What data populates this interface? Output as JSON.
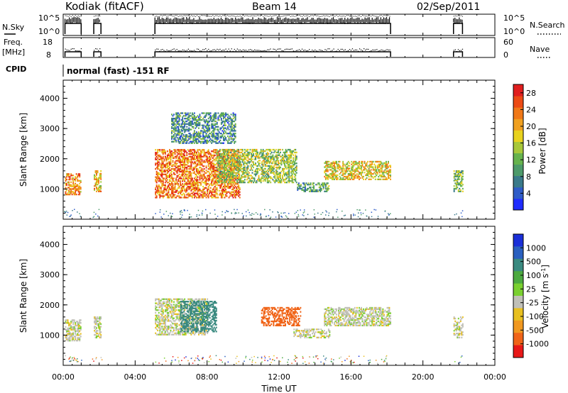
{
  "header": {
    "station": "Kodiak (fitACF)",
    "beam": "Beam 14",
    "date": "02/Sep/2011"
  },
  "status_panels": {
    "nsky_label": "N.Sky",
    "nsky_ticks": [
      "10^5",
      "10^0"
    ],
    "nsearch_label": "N.Search",
    "nsearch_ticks": [
      "10^5",
      "10^0"
    ],
    "freq_label_line1": "Freq.",
    "freq_label_line2": "[MHz]",
    "freq_ticks": [
      "18",
      "8"
    ],
    "nave_label": "Nave",
    "nave_ticks": [
      "60",
      "0"
    ],
    "cpid_label": "CPID",
    "cpid_text": "normal (fast) -151 RF"
  },
  "chart_data": [
    {
      "type": "heatmap",
      "title": "",
      "xlabel": "",
      "ylabel": "Slant Range [km]",
      "ylim": [
        0,
        4600
      ],
      "yticks": [
        "1000",
        "2000",
        "3000",
        "4000"
      ],
      "xlim": [
        0,
        24
      ],
      "colorbar": {
        "label": "Power [dB]",
        "ticks": [
          "4",
          "8",
          "12",
          "16",
          "20",
          "24",
          "28"
        ],
        "colors": [
          "#1f2cff",
          "#2f5cc8",
          "#3a7a8a",
          "#4d9a6a",
          "#66b34d",
          "#a8c83a",
          "#e8d21e",
          "#f0a020",
          "#f07818",
          "#ec4a14",
          "#e01e1e"
        ]
      },
      "data_gaps_hours": [
        [
          1.0,
          1.6
        ],
        [
          2.2,
          5.1
        ],
        [
          18.2,
          21.7
        ],
        [
          22.3,
          24.0
        ]
      ],
      "echo_regions": [
        {
          "start_h": 0.1,
          "end_h": 1.0,
          "range_km": [
            800,
            1500
          ],
          "power_db": 22
        },
        {
          "start_h": 1.7,
          "end_h": 2.1,
          "range_km": [
            900,
            1600
          ],
          "power_db": 20
        },
        {
          "start_h": 5.1,
          "end_h": 9.8,
          "range_km": [
            700,
            2300
          ],
          "power_db": 24
        },
        {
          "start_h": 6.0,
          "end_h": 9.6,
          "range_km": [
            2500,
            3500
          ],
          "power_db": 8
        },
        {
          "start_h": 8.5,
          "end_h": 13.0,
          "range_km": [
            1200,
            2300
          ],
          "power_db": 14
        },
        {
          "start_h": 13.0,
          "end_h": 14.8,
          "range_km": [
            900,
            1200
          ],
          "power_db": 10
        },
        {
          "start_h": 14.5,
          "end_h": 18.2,
          "range_km": [
            1300,
            1900
          ],
          "power_db": 18
        },
        {
          "start_h": 21.7,
          "end_h": 22.2,
          "range_km": [
            900,
            1600
          ],
          "power_db": 12
        }
      ]
    },
    {
      "type": "heatmap",
      "title": "",
      "xlabel": "Time UT",
      "ylabel": "Slant Range [km]",
      "ylim": [
        0,
        4600
      ],
      "yticks": [
        "1000",
        "2000",
        "3000",
        "4000"
      ],
      "xlim": [
        0,
        24
      ],
      "xticks": [
        "00:00",
        "04:00",
        "08:00",
        "12:00",
        "16:00",
        "20:00",
        "00:00"
      ],
      "colorbar": {
        "label": "Velocity [m s^-1]",
        "ticks": [
          "1000",
          "500",
          "100",
          "25",
          "-25",
          "-100",
          "-500",
          "-1000"
        ],
        "colors": [
          "#1a2fd8",
          "#2a60c0",
          "#3a8a80",
          "#4caa40",
          "#7ad030",
          "#c0c0b8",
          "#e8c020",
          "#f09820",
          "#f06418",
          "#e81818"
        ]
      },
      "echo_regions": [
        {
          "start_h": 0.1,
          "end_h": 1.0,
          "range_km": [
            800,
            1500
          ],
          "velocity": 0
        },
        {
          "start_h": 1.7,
          "end_h": 2.1,
          "range_km": [
            900,
            1600
          ],
          "velocity": 0
        },
        {
          "start_h": 5.1,
          "end_h": 8.0,
          "range_km": [
            1000,
            2200
          ],
          "velocity": 0
        },
        {
          "start_h": 6.5,
          "end_h": 8.5,
          "range_km": [
            1100,
            2100
          ],
          "velocity": 150
        },
        {
          "start_h": 11.0,
          "end_h": 13.2,
          "range_km": [
            1300,
            1900
          ],
          "velocity": -150
        },
        {
          "start_h": 12.8,
          "end_h": 14.8,
          "range_km": [
            900,
            1200
          ],
          "velocity": 0
        },
        {
          "start_h": 14.5,
          "end_h": 18.2,
          "range_km": [
            1300,
            1900
          ],
          "velocity": 0
        },
        {
          "start_h": 21.7,
          "end_h": 22.2,
          "range_km": [
            900,
            1600
          ],
          "velocity": 0
        }
      ]
    }
  ]
}
